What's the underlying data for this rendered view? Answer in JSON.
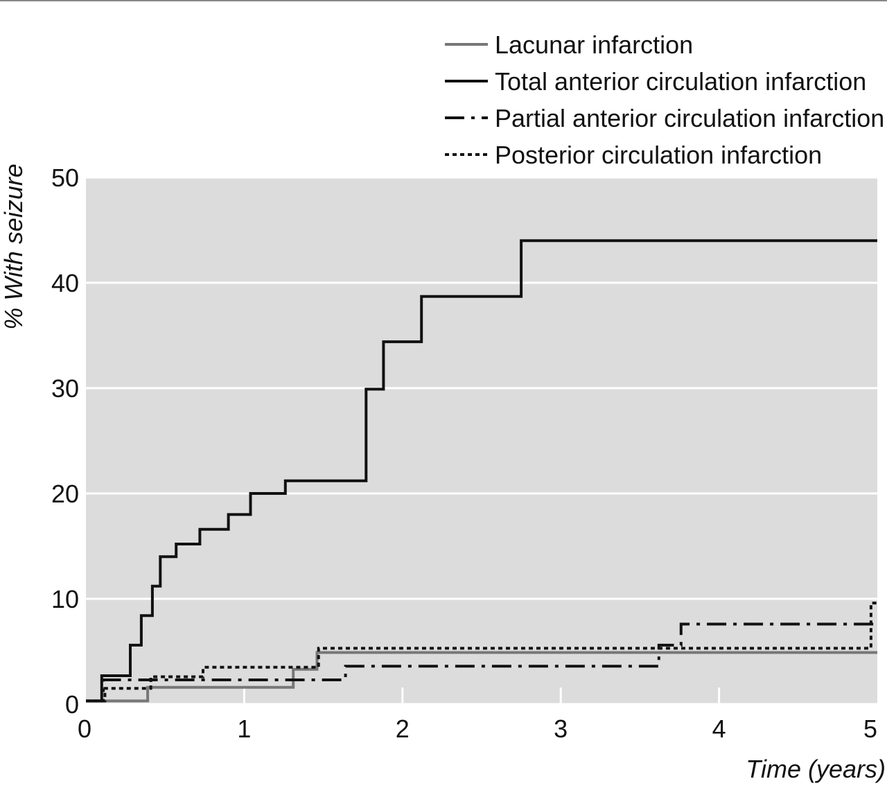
{
  "chart_data": {
    "type": "line",
    "step": true,
    "title": "",
    "xlabel": "Time (years)",
    "ylabel": "% With seizure",
    "xlim": [
      0,
      5
    ],
    "ylim": [
      0,
      50
    ],
    "x_ticks": [
      0,
      1,
      2,
      3,
      4,
      5
    ],
    "y_ticks": [
      0,
      10,
      20,
      30,
      40,
      50
    ],
    "grid": "horizontal white gridlines on grey background",
    "legend_position": "top-right, above plot",
    "colors": {
      "plot_background": "#dcdcdc",
      "grid": "#ffffff",
      "top_rule": "#888888"
    },
    "series": [
      {
        "name": "Lacunar infarction",
        "color": "#777777",
        "line_style": "solid",
        "points": [
          [
            0,
            0.3
          ],
          [
            0.39,
            0.3
          ],
          [
            0.39,
            1.6
          ],
          [
            1.31,
            1.6
          ],
          [
            1.31,
            3.3
          ],
          [
            1.46,
            3.3
          ],
          [
            1.46,
            4.9
          ],
          [
            5.0,
            4.9
          ]
        ]
      },
      {
        "name": "Total anterior circulation infarction",
        "color": "#111111",
        "line_style": "solid",
        "points": [
          [
            0,
            0.3
          ],
          [
            0.1,
            0.3
          ],
          [
            0.1,
            2.7
          ],
          [
            0.28,
            2.7
          ],
          [
            0.28,
            5.6
          ],
          [
            0.35,
            5.6
          ],
          [
            0.35,
            8.4
          ],
          [
            0.42,
            8.4
          ],
          [
            0.42,
            11.2
          ],
          [
            0.47,
            11.2
          ],
          [
            0.47,
            14.0
          ],
          [
            0.57,
            14.0
          ],
          [
            0.57,
            15.2
          ],
          [
            0.72,
            15.2
          ],
          [
            0.72,
            16.6
          ],
          [
            0.9,
            16.6
          ],
          [
            0.9,
            18.0
          ],
          [
            1.04,
            18.0
          ],
          [
            1.04,
            20.0
          ],
          [
            1.26,
            20.0
          ],
          [
            1.26,
            21.2
          ],
          [
            1.77,
            21.2
          ],
          [
            1.77,
            29.9
          ],
          [
            1.88,
            29.9
          ],
          [
            1.88,
            34.4
          ],
          [
            2.12,
            34.4
          ],
          [
            2.12,
            38.7
          ],
          [
            2.75,
            38.7
          ],
          [
            2.75,
            44.0
          ],
          [
            5.0,
            44.0
          ]
        ]
      },
      {
        "name": "Partial anterior circulation infarction",
        "color": "#111111",
        "line_style": "dash-dot",
        "points": [
          [
            0,
            0.3
          ],
          [
            0.11,
            0.3
          ],
          [
            0.11,
            2.3
          ],
          [
            1.64,
            2.3
          ],
          [
            1.64,
            3.6
          ],
          [
            3.62,
            3.6
          ],
          [
            3.62,
            5.6
          ],
          [
            3.76,
            5.6
          ],
          [
            3.76,
            7.6
          ],
          [
            5.0,
            7.6
          ]
        ]
      },
      {
        "name": "Posterior circulation infarction",
        "color": "#111111",
        "line_style": "dotted",
        "points": [
          [
            0,
            0.3
          ],
          [
            0.12,
            0.3
          ],
          [
            0.12,
            1.5
          ],
          [
            0.41,
            1.5
          ],
          [
            0.41,
            2.6
          ],
          [
            0.74,
            2.6
          ],
          [
            0.74,
            3.5
          ],
          [
            1.47,
            3.5
          ],
          [
            1.47,
            5.3
          ],
          [
            4.96,
            5.3
          ],
          [
            4.96,
            9.6
          ],
          [
            5.0,
            9.6
          ]
        ]
      }
    ]
  }
}
